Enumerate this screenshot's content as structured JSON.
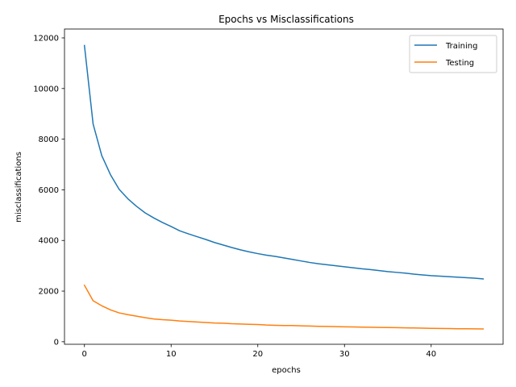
{
  "chart_data": {
    "type": "line",
    "title": "Epochs vs Misclassifications",
    "xlabel": "epochs",
    "ylabel": "misclassifications",
    "xlim": [
      -2.3,
      48.3
    ],
    "ylim": [
      -100,
      12350
    ],
    "xticks": [
      0,
      10,
      20,
      30,
      40
    ],
    "yticks": [
      0,
      2000,
      4000,
      6000,
      8000,
      10000,
      12000
    ],
    "grid": false,
    "legend_position": "top-right",
    "x": [
      0,
      1,
      2,
      3,
      4,
      5,
      6,
      7,
      8,
      9,
      10,
      11,
      12,
      13,
      14,
      15,
      16,
      17,
      18,
      19,
      20,
      21,
      22,
      23,
      24,
      25,
      26,
      27,
      28,
      29,
      30,
      31,
      32,
      33,
      34,
      35,
      36,
      37,
      38,
      39,
      40,
      41,
      42,
      43,
      44,
      45,
      46
    ],
    "series": [
      {
        "name": "Training",
        "color": "#1f77b4",
        "values": [
          11700,
          8600,
          7350,
          6600,
          6020,
          5650,
          5350,
          5090,
          4890,
          4710,
          4550,
          4380,
          4260,
          4150,
          4040,
          3920,
          3820,
          3720,
          3630,
          3550,
          3480,
          3420,
          3370,
          3310,
          3250,
          3190,
          3130,
          3080,
          3040,
          3000,
          2960,
          2920,
          2880,
          2850,
          2810,
          2770,
          2740,
          2710,
          2670,
          2640,
          2610,
          2590,
          2570,
          2550,
          2530,
          2510,
          2480
        ]
      },
      {
        "name": "Testing",
        "color": "#ff7f0e",
        "values": [
          2230,
          1620,
          1420,
          1260,
          1140,
          1070,
          1010,
          950,
          900,
          870,
          850,
          820,
          800,
          780,
          760,
          740,
          730,
          710,
          700,
          690,
          680,
          660,
          650,
          640,
          640,
          630,
          620,
          610,
          605,
          595,
          590,
          585,
          578,
          572,
          566,
          560,
          555,
          550,
          543,
          537,
          530,
          525,
          520,
          515,
          512,
          508,
          505
        ]
      }
    ]
  }
}
